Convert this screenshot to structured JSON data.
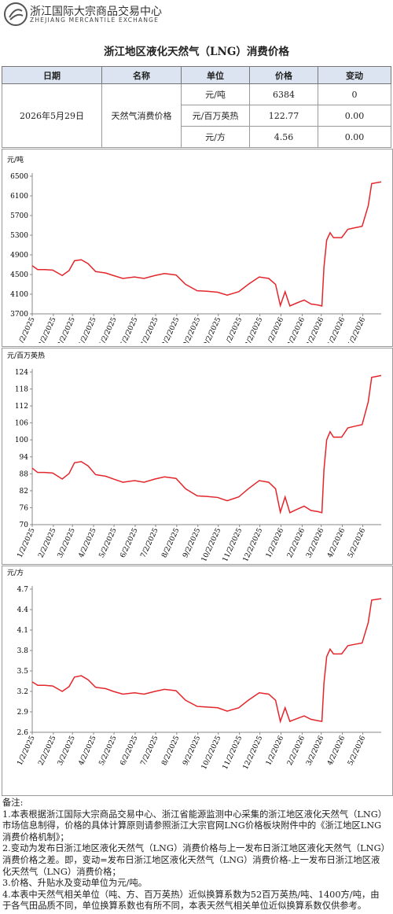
{
  "header": {
    "org": "浙江国际大宗商品交易中心",
    "org_en": "ZHEJIANG MERCANTILE EXCHANGE"
  },
  "title": "浙江地区液化天然气（LNG）消费价格",
  "table": {
    "columns": [
      "日期",
      "名称",
      "单位",
      "价格",
      "变动"
    ],
    "date": "2026年5月29日",
    "name": "天然气消费价格",
    "rows": [
      [
        "元/吨",
        "6384",
        "0"
      ],
      [
        "元/百万英热",
        "122.77",
        "0.00"
      ],
      [
        "元/方",
        "4.56",
        "0.00"
      ]
    ]
  },
  "charts": [
    {
      "type": "line",
      "y_label": "元/吨",
      "color": "#e3262b",
      "x": [
        "1/2/2025",
        "1/10/2025",
        "1/20/2025",
        "2/1/2025",
        "2/15/2025",
        "2/25/2025",
        "3/5/2025",
        "3/15/2025",
        "3/25/2025",
        "4/5/2025",
        "4/20/2025",
        "5/1/2025",
        "5/15/2025",
        "6/1/2025",
        "6/15/2025",
        "7/1/2025",
        "7/15/2025",
        "8/1/2025",
        "8/15/2025",
        "9/1/2025",
        "9/15/2025",
        "10/1/2025",
        "10/15/2025",
        "11/1/2025",
        "11/15/2025",
        "12/1/2025",
        "12/15/2025",
        "12/25/2025",
        "1/1/2026",
        "1/8/2026",
        "1/15/2026",
        "1/25/2026",
        "2/5/2026",
        "2/15/2026",
        "2/25/2026",
        "3/3/2026",
        "3/6/2026",
        "3/10/2026",
        "3/15/2026",
        "3/20/2026",
        "4/1/2026",
        "4/10/2026",
        "4/20/2026",
        "5/1/2026",
        "5/10/2026",
        "5/15/2026",
        "5/29/2026"
      ],
      "values": [
        4680,
        4600,
        4600,
        4590,
        4480,
        4580,
        4780,
        4800,
        4720,
        4560,
        4530,
        4480,
        4420,
        4450,
        4420,
        4480,
        4520,
        4490,
        4300,
        4170,
        4160,
        4140,
        4080,
        4150,
        4300,
        4450,
        4420,
        4300,
        3870,
        4150,
        3860,
        3920,
        3980,
        3900,
        3880,
        3860,
        4650,
        5200,
        5350,
        5250,
        5250,
        5420,
        5450,
        5480,
        5900,
        6350,
        6384
      ],
      "xlim": [
        "1/2/2025",
        "5/29/2026"
      ],
      "xticks": [
        "1/2/2025",
        "2/2/2025",
        "3/2/2025",
        "4/2/2025",
        "5/2/2025",
        "6/2/2025",
        "7/2/2025",
        "8/2/2025",
        "9/2/2025",
        "10/2/2025",
        "11/2/2025",
        "12/2/2025",
        "1/2/2026",
        "2/2/2026",
        "3/2/2026",
        "4/2/2026",
        "5/2/2026"
      ],
      "ylim": [
        3700,
        6500
      ],
      "yticks": [
        3700,
        4100,
        4500,
        4900,
        5300,
        5700,
        6100,
        6500
      ]
    },
    {
      "type": "line",
      "y_label": "元/百万英热",
      "color": "#e3262b",
      "x": [
        "1/2/2025",
        "1/10/2025",
        "1/20/2025",
        "2/1/2025",
        "2/15/2025",
        "2/25/2025",
        "3/5/2025",
        "3/15/2025",
        "3/25/2025",
        "4/5/2025",
        "4/20/2025",
        "5/1/2025",
        "5/15/2025",
        "6/1/2025",
        "6/15/2025",
        "7/1/2025",
        "7/15/2025",
        "8/1/2025",
        "8/15/2025",
        "9/1/2025",
        "9/15/2025",
        "10/1/2025",
        "10/15/2025",
        "11/1/2025",
        "11/15/2025",
        "12/1/2025",
        "12/15/2025",
        "12/25/2025",
        "1/1/2026",
        "1/8/2026",
        "1/15/2026",
        "1/25/2026",
        "2/5/2026",
        "2/15/2026",
        "2/25/2026",
        "3/3/2026",
        "3/6/2026",
        "3/10/2026",
        "3/15/2026",
        "3/20/2026",
        "4/1/2026",
        "4/10/2026",
        "4/20/2026",
        "5/1/2026",
        "5/10/2026",
        "5/15/2026",
        "5/29/2026"
      ],
      "values": [
        90.0,
        88.46,
        88.46,
        88.27,
        86.15,
        88.08,
        91.92,
        92.31,
        90.77,
        87.69,
        87.12,
        86.15,
        85.0,
        85.58,
        85.0,
        86.15,
        86.92,
        86.35,
        82.69,
        80.19,
        80.0,
        79.62,
        78.46,
        79.81,
        82.69,
        85.58,
        85.0,
        82.69,
        74.42,
        79.81,
        74.23,
        75.38,
        76.54,
        75.0,
        74.62,
        74.23,
        89.42,
        100.0,
        102.88,
        100.96,
        100.96,
        104.23,
        104.81,
        105.38,
        113.46,
        122.12,
        122.77
      ],
      "xlim": [
        "1/2/2025",
        "5/29/2026"
      ],
      "xticks": [
        "1/2/2025",
        "2/2/2025",
        "3/2/2025",
        "4/2/2025",
        "5/2/2025",
        "6/2/2025",
        "7/2/2025",
        "8/2/2025",
        "9/2/2025",
        "10/2/2025",
        "11/2/2025",
        "12/2/2025",
        "1/2/2026",
        "2/2/2026",
        "3/2/2026",
        "4/2/2026",
        "5/2/2026"
      ],
      "ylim": [
        70,
        124
      ],
      "yticks": [
        70,
        76,
        82,
        88,
        94,
        100,
        106,
        112,
        118,
        124
      ]
    },
    {
      "type": "line",
      "y_label": "元/方",
      "color": "#e3262b",
      "x": [
        "1/2/2025",
        "1/10/2025",
        "1/20/2025",
        "2/1/2025",
        "2/15/2025",
        "2/25/2025",
        "3/5/2025",
        "3/15/2025",
        "3/25/2025",
        "4/5/2025",
        "4/20/2025",
        "5/1/2025",
        "5/15/2025",
        "6/1/2025",
        "6/15/2025",
        "7/1/2025",
        "7/15/2025",
        "8/1/2025",
        "8/15/2025",
        "9/1/2025",
        "9/15/2025",
        "10/1/2025",
        "10/15/2025",
        "11/1/2025",
        "11/15/2025",
        "12/1/2025",
        "12/15/2025",
        "12/25/2025",
        "1/1/2026",
        "1/8/2026",
        "1/15/2026",
        "1/25/2026",
        "2/5/2026",
        "2/15/2026",
        "2/25/2026",
        "3/3/2026",
        "3/6/2026",
        "3/10/2026",
        "3/15/2026",
        "3/20/2026",
        "4/1/2026",
        "4/10/2026",
        "4/20/2026",
        "5/1/2026",
        "5/10/2026",
        "5/15/2026",
        "5/29/2026"
      ],
      "values": [
        3.34,
        3.29,
        3.29,
        3.28,
        3.2,
        3.27,
        3.41,
        3.43,
        3.37,
        3.26,
        3.24,
        3.2,
        3.16,
        3.18,
        3.16,
        3.2,
        3.23,
        3.21,
        3.07,
        2.98,
        2.97,
        2.96,
        2.91,
        2.96,
        3.07,
        3.18,
        3.16,
        3.07,
        2.76,
        2.96,
        2.76,
        2.8,
        2.84,
        2.79,
        2.77,
        2.76,
        3.32,
        3.71,
        3.82,
        3.75,
        3.75,
        3.87,
        3.89,
        3.91,
        4.21,
        4.54,
        4.56
      ],
      "xlim": [
        "1/2/2025",
        "5/29/2026"
      ],
      "xticks": [
        "1/2/2025",
        "2/2/2025",
        "3/2/2025",
        "4/2/2025",
        "5/2/2025",
        "6/2/2025",
        "7/2/2025",
        "8/2/2025",
        "9/2/2025",
        "10/2/2025",
        "11/2/2025",
        "12/2/2025",
        "1/2/2026",
        "2/2/2026",
        "3/2/2026",
        "4/2/2026",
        "5/2/2026"
      ],
      "ylim": [
        2.6,
        4.7
      ],
      "yticks": [
        2.6,
        2.9,
        3.2,
        3.5,
        3.8,
        4.1,
        4.4,
        4.7
      ]
    }
  ],
  "notes": {
    "title": "备注:",
    "items": [
      "1.本表根据浙江国际大宗商品交易中心、浙江省能源监测中心采集的浙江地区液化天然气（LNG）市场信息制得，价格的具体计算原则请参照浙江大宗官网LNG价格板块附件中的《浙江地区LNG消费价格机制》；",
      "2.变动为发布日浙江地区液化天然气（LNG）消费价格与上一发布日浙江地区液化天然气（LNG）消费价格之差。即，变动=发布日浙江地区液化天然气（LNG）消费价格-上一发布日浙江地区液化天然气（LNG）消费价格；",
      "3.价格、升贴水及变动单位为元/吨。",
      "4.本表中天然气相关单位（吨、方、百万英热）近似换算系数为52百万英热/吨、1400方/吨，由于各气田品质不同，单位换算系数也有所不同，本表天然气相关单位近似换算系数仅供参考。"
    ]
  }
}
